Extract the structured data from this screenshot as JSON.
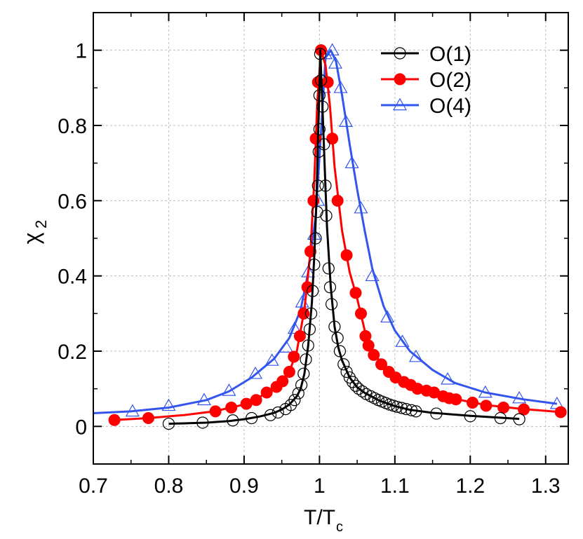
{
  "chart_data": {
    "type": "line",
    "title": "",
    "xlabel": "T/T",
    "xlabel_sub": "c",
    "ylabel": "χ",
    "ylabel_sub": "2",
    "xlim": [
      0.7,
      1.33
    ],
    "ylim": [
      -0.1,
      1.1
    ],
    "xticks": [
      0.7,
      0.8,
      0.9,
      1.0,
      1.1,
      1.2,
      1.3
    ],
    "xtick_labels": [
      "0.7",
      "0.8",
      "0.9",
      "1",
      "1.1",
      "1.2",
      "1.3"
    ],
    "yticks": [
      0,
      0.2,
      0.4,
      0.6,
      0.8,
      1.0
    ],
    "ytick_labels": [
      "0",
      "0.2",
      "0.4",
      "0.6",
      "0.8",
      "1"
    ],
    "legend_position": "top-right",
    "series": [
      {
        "name": "O(1)",
        "color": "#000000",
        "marker": "open-circle",
        "points": [
          [
            0.8,
            0.007
          ],
          [
            0.845,
            0.01
          ],
          [
            0.885,
            0.016
          ],
          [
            0.91,
            0.022
          ],
          [
            0.935,
            0.03
          ],
          [
            0.945,
            0.037
          ],
          [
            0.955,
            0.046
          ],
          [
            0.962,
            0.057
          ],
          [
            0.967,
            0.07
          ],
          [
            0.972,
            0.088
          ],
          [
            0.976,
            0.11
          ],
          [
            0.979,
            0.14
          ],
          [
            0.982,
            0.178
          ],
          [
            0.985,
            0.215
          ],
          [
            0.987,
            0.258
          ],
          [
            0.989,
            0.3
          ],
          [
            0.991,
            0.36
          ],
          [
            0.993,
            0.43
          ],
          [
            0.995,
            0.5
          ],
          [
            0.997,
            0.57
          ],
          [
            0.998,
            0.64
          ],
          [
            0.999,
            0.73
          ],
          [
            1.0,
            0.79
          ],
          [
            1.0,
            0.88
          ],
          [
            1.001,
            0.99
          ],
          [
            1.002,
            0.92
          ],
          [
            1.004,
            0.85
          ],
          [
            1.006,
            0.75
          ],
          [
            1.008,
            0.64
          ],
          [
            1.009,
            0.56
          ],
          [
            1.012,
            0.42
          ],
          [
            1.014,
            0.37
          ],
          [
            1.016,
            0.325
          ],
          [
            1.02,
            0.265
          ],
          [
            1.024,
            0.235
          ],
          [
            1.027,
            0.2
          ],
          [
            1.032,
            0.165
          ],
          [
            1.036,
            0.145
          ],
          [
            1.04,
            0.13
          ],
          [
            1.044,
            0.118
          ],
          [
            1.048,
            0.108
          ],
          [
            1.052,
            0.1
          ],
          [
            1.057,
            0.093
          ],
          [
            1.062,
            0.086
          ],
          [
            1.068,
            0.08
          ],
          [
            1.073,
            0.075
          ],
          [
            1.078,
            0.07
          ],
          [
            1.083,
            0.066
          ],
          [
            1.088,
            0.062
          ],
          [
            1.093,
            0.058
          ],
          [
            1.098,
            0.055
          ],
          [
            1.103,
            0.052
          ],
          [
            1.109,
            0.049
          ],
          [
            1.115,
            0.046
          ],
          [
            1.122,
            0.043
          ],
          [
            1.128,
            0.04
          ],
          [
            1.155,
            0.034
          ],
          [
            1.2,
            0.027
          ],
          [
            1.24,
            0.022
          ],
          [
            1.265,
            0.019
          ]
        ],
        "curve": [
          [
            0.8,
            0.007
          ],
          [
            0.85,
            0.01
          ],
          [
            0.88,
            0.014
          ],
          [
            0.9,
            0.019
          ],
          [
            0.92,
            0.026
          ],
          [
            0.94,
            0.036
          ],
          [
            0.95,
            0.045
          ],
          [
            0.96,
            0.058
          ],
          [
            0.97,
            0.08
          ],
          [
            0.975,
            0.1
          ],
          [
            0.98,
            0.14
          ],
          [
            0.985,
            0.215
          ],
          [
            0.99,
            0.33
          ],
          [
            0.993,
            0.45
          ],
          [
            0.996,
            0.6
          ],
          [
            0.998,
            0.76
          ],
          [
            1.0,
            0.9
          ],
          [
            1.001,
            1.0
          ],
          [
            1.003,
            0.9
          ],
          [
            1.006,
            0.74
          ],
          [
            1.01,
            0.53
          ],
          [
            1.015,
            0.37
          ],
          [
            1.02,
            0.265
          ],
          [
            1.025,
            0.21
          ],
          [
            1.03,
            0.175
          ],
          [
            1.04,
            0.13
          ],
          [
            1.05,
            0.104
          ],
          [
            1.06,
            0.089
          ],
          [
            1.08,
            0.068
          ],
          [
            1.1,
            0.054
          ],
          [
            1.12,
            0.044
          ],
          [
            1.15,
            0.036
          ],
          [
            1.2,
            0.028
          ],
          [
            1.265,
            0.02
          ]
        ]
      },
      {
        "name": "O(2)",
        "color": "#ff0000",
        "marker": "filled-circle",
        "points": [
          [
            0.728,
            0.017
          ],
          [
            0.773,
            0.022
          ],
          [
            0.862,
            0.04
          ],
          [
            0.883,
            0.05
          ],
          [
            0.903,
            0.06
          ],
          [
            0.916,
            0.07
          ],
          [
            0.93,
            0.09
          ],
          [
            0.943,
            0.105
          ],
          [
            0.951,
            0.12
          ],
          [
            0.96,
            0.145
          ],
          [
            0.966,
            0.185
          ],
          [
            0.974,
            0.24
          ],
          [
            0.979,
            0.3
          ],
          [
            0.984,
            0.37
          ],
          [
            0.988,
            0.465
          ],
          [
            0.992,
            0.6
          ],
          [
            0.995,
            0.765
          ],
          [
            0.998,
            0.915
          ],
          [
            1.002,
            1.0
          ],
          [
            1.011,
            0.915
          ],
          [
            1.017,
            0.765
          ],
          [
            1.024,
            0.6
          ],
          [
            1.036,
            0.455
          ],
          [
            1.048,
            0.355
          ],
          [
            1.055,
            0.3
          ],
          [
            1.061,
            0.24
          ],
          [
            1.065,
            0.215
          ],
          [
            1.072,
            0.19
          ],
          [
            1.082,
            0.165
          ],
          [
            1.092,
            0.145
          ],
          [
            1.101,
            0.13
          ],
          [
            1.112,
            0.118
          ],
          [
            1.121,
            0.11
          ],
          [
            1.13,
            0.1
          ],
          [
            1.142,
            0.095
          ],
          [
            1.152,
            0.09
          ],
          [
            1.164,
            0.08
          ],
          [
            1.172,
            0.075
          ],
          [
            1.181,
            0.072
          ],
          [
            1.203,
            0.063
          ],
          [
            1.221,
            0.055
          ],
          [
            1.244,
            0.05
          ],
          [
            1.271,
            0.045
          ],
          [
            1.32,
            0.038
          ]
        ],
        "curve": [
          [
            0.728,
            0.017
          ],
          [
            0.773,
            0.022
          ],
          [
            0.82,
            0.03
          ],
          [
            0.86,
            0.04
          ],
          [
            0.9,
            0.058
          ],
          [
            0.93,
            0.088
          ],
          [
            0.95,
            0.118
          ],
          [
            0.96,
            0.145
          ],
          [
            0.97,
            0.2
          ],
          [
            0.98,
            0.31
          ],
          [
            0.988,
            0.465
          ],
          [
            0.993,
            0.65
          ],
          [
            0.997,
            0.86
          ],
          [
            1.002,
            1.0
          ],
          [
            1.008,
            0.96
          ],
          [
            1.014,
            0.85
          ],
          [
            1.02,
            0.69
          ],
          [
            1.03,
            0.52
          ],
          [
            1.04,
            0.41
          ],
          [
            1.05,
            0.34
          ],
          [
            1.06,
            0.255
          ],
          [
            1.07,
            0.2
          ],
          [
            1.085,
            0.16
          ],
          [
            1.1,
            0.132
          ],
          [
            1.12,
            0.11
          ],
          [
            1.15,
            0.09
          ],
          [
            1.18,
            0.073
          ],
          [
            1.22,
            0.057
          ],
          [
            1.27,
            0.046
          ],
          [
            1.32,
            0.038
          ]
        ]
      },
      {
        "name": "O(4)",
        "color": "#3355ee",
        "marker": "open-triangle",
        "points": [
          [
            0.752,
            0.04
          ],
          [
            0.8,
            0.055
          ],
          [
            0.847,
            0.07
          ],
          [
            0.88,
            0.095
          ],
          [
            0.915,
            0.14
          ],
          [
            0.937,
            0.175
          ],
          [
            0.956,
            0.21
          ],
          [
            0.967,
            0.26
          ],
          [
            0.977,
            0.33
          ],
          [
            0.985,
            0.41
          ],
          [
            0.993,
            0.51
          ],
          [
            0.998,
            0.6
          ],
          [
            1.006,
            0.9
          ],
          [
            1.008,
            0.99
          ],
          [
            1.017,
            1.0
          ],
          [
            1.021,
            0.965
          ],
          [
            1.028,
            0.9
          ],
          [
            1.035,
            0.81
          ],
          [
            1.043,
            0.7
          ],
          [
            1.055,
            0.58
          ],
          [
            1.07,
            0.4
          ],
          [
            1.09,
            0.29
          ],
          [
            1.11,
            0.225
          ],
          [
            1.128,
            0.185
          ],
          [
            1.17,
            0.125
          ],
          [
            1.22,
            0.09
          ],
          [
            1.265,
            0.075
          ],
          [
            1.315,
            0.06
          ]
        ],
        "curve": [
          [
            0.7,
            0.035
          ],
          [
            0.75,
            0.04
          ],
          [
            0.8,
            0.05
          ],
          [
            0.85,
            0.07
          ],
          [
            0.88,
            0.093
          ],
          [
            0.91,
            0.13
          ],
          [
            0.94,
            0.18
          ],
          [
            0.96,
            0.235
          ],
          [
            0.975,
            0.31
          ],
          [
            0.985,
            0.41
          ],
          [
            0.995,
            0.56
          ],
          [
            1.002,
            0.78
          ],
          [
            1.008,
            0.98
          ],
          [
            1.015,
            1.0
          ],
          [
            1.022,
            0.97
          ],
          [
            1.03,
            0.88
          ],
          [
            1.04,
            0.75
          ],
          [
            1.05,
            0.63
          ],
          [
            1.06,
            0.52
          ],
          [
            1.07,
            0.42
          ],
          [
            1.085,
            0.32
          ],
          [
            1.1,
            0.255
          ],
          [
            1.12,
            0.2
          ],
          [
            1.15,
            0.15
          ],
          [
            1.18,
            0.115
          ],
          [
            1.22,
            0.09
          ],
          [
            1.27,
            0.072
          ],
          [
            1.315,
            0.06
          ]
        ]
      }
    ]
  }
}
